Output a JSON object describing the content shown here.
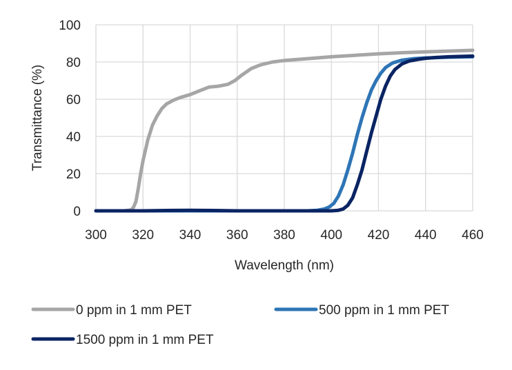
{
  "chart_data": {
    "type": "line",
    "title": "",
    "xlabel": "Wavelength (nm)",
    "ylabel": "Transmittance (%)",
    "xlim": [
      300,
      460
    ],
    "ylim": [
      0,
      100
    ],
    "x_ticks": [
      300,
      320,
      340,
      360,
      380,
      400,
      420,
      440,
      460
    ],
    "y_ticks": [
      0,
      20,
      40,
      60,
      80,
      100
    ],
    "grid": true,
    "legend_position": "bottom",
    "series": [
      {
        "name": "0 ppm in 1 mm PET",
        "color": "#a6a6a6",
        "points": [
          [
            300,
            0
          ],
          [
            312,
            0
          ],
          [
            315,
            0.5
          ],
          [
            316,
            2
          ],
          [
            317,
            5
          ],
          [
            318,
            12
          ],
          [
            319,
            20
          ],
          [
            320,
            27
          ],
          [
            322,
            38
          ],
          [
            324,
            46
          ],
          [
            326,
            51
          ],
          [
            328,
            55
          ],
          [
            330,
            57.5
          ],
          [
            333,
            59.5
          ],
          [
            336,
            61
          ],
          [
            340,
            62.5
          ],
          [
            344,
            64.5
          ],
          [
            348,
            66.5
          ],
          [
            352,
            67
          ],
          [
            356,
            68
          ],
          [
            359,
            70
          ],
          [
            362,
            73
          ],
          [
            366,
            76.5
          ],
          [
            370,
            78.5
          ],
          [
            375,
            80
          ],
          [
            380,
            80.8
          ],
          [
            390,
            81.8
          ],
          [
            400,
            82.8
          ],
          [
            410,
            83.6
          ],
          [
            420,
            84.4
          ],
          [
            430,
            85
          ],
          [
            440,
            85.5
          ],
          [
            450,
            85.9
          ],
          [
            460,
            86.3
          ]
        ]
      },
      {
        "name": "500 ppm in 1 mm PET",
        "color": "#2e75b6",
        "points": [
          [
            300,
            0
          ],
          [
            340,
            0
          ],
          [
            390,
            0
          ],
          [
            394,
            0.3
          ],
          [
            397,
            1
          ],
          [
            399,
            2
          ],
          [
            401,
            4
          ],
          [
            403,
            8
          ],
          [
            405,
            14
          ],
          [
            407,
            22
          ],
          [
            409,
            31
          ],
          [
            411,
            41
          ],
          [
            413,
            50
          ],
          [
            415,
            58
          ],
          [
            417,
            65
          ],
          [
            419,
            70
          ],
          [
            421,
            74
          ],
          [
            423,
            77
          ],
          [
            426,
            79.5
          ],
          [
            430,
            81
          ],
          [
            435,
            81.8
          ],
          [
            440,
            82.2
          ],
          [
            450,
            82.6
          ],
          [
            460,
            82.8
          ]
        ]
      },
      {
        "name": "1500 ppm in 1 mm PET",
        "color": "#0a2463",
        "points": [
          [
            300,
            0
          ],
          [
            320,
            0
          ],
          [
            330,
            0.2
          ],
          [
            340,
            0.3
          ],
          [
            350,
            0.2
          ],
          [
            360,
            0
          ],
          [
            380,
            0
          ],
          [
            400,
            0
          ],
          [
            403,
            0.3
          ],
          [
            405,
            1
          ],
          [
            407,
            3
          ],
          [
            409,
            7
          ],
          [
            411,
            14
          ],
          [
            413,
            22
          ],
          [
            415,
            32
          ],
          [
            417,
            42
          ],
          [
            419,
            51
          ],
          [
            421,
            60
          ],
          [
            423,
            67
          ],
          [
            425,
            72.5
          ],
          [
            427,
            76
          ],
          [
            430,
            79
          ],
          [
            433,
            80.5
          ],
          [
            437,
            81.5
          ],
          [
            440,
            82
          ],
          [
            445,
            82.5
          ],
          [
            450,
            82.8
          ],
          [
            460,
            83.2
          ]
        ]
      }
    ]
  }
}
